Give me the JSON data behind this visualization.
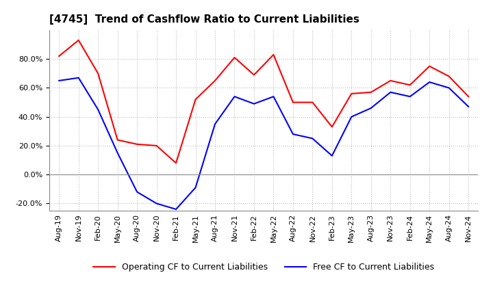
{
  "title": "[4745]  Trend of Cashflow Ratio to Current Liabilities",
  "x_labels": [
    "Aug-19",
    "Nov-19",
    "Feb-20",
    "May-20",
    "Aug-20",
    "Nov-20",
    "Feb-21",
    "May-21",
    "Aug-21",
    "Nov-21",
    "Feb-22",
    "May-22",
    "Aug-22",
    "Nov-22",
    "Feb-23",
    "May-23",
    "Aug-23",
    "Nov-23",
    "Feb-24",
    "May-24",
    "Aug-24",
    "Nov-24"
  ],
  "operating_cf": [
    0.82,
    0.93,
    0.7,
    0.24,
    0.21,
    0.2,
    0.08,
    0.52,
    0.65,
    0.81,
    0.69,
    0.83,
    0.5,
    0.5,
    0.33,
    0.56,
    0.57,
    0.65,
    0.62,
    0.75,
    0.68,
    0.54
  ],
  "free_cf": [
    0.65,
    0.67,
    0.45,
    0.15,
    -0.12,
    -0.2,
    -0.24,
    -0.09,
    0.35,
    0.54,
    0.49,
    0.54,
    0.28,
    0.25,
    0.13,
    0.4,
    0.46,
    0.57,
    0.54,
    0.64,
    0.6,
    0.47
  ],
  "operating_color": "#ff0000",
  "free_color": "#0000ff",
  "ylim": [
    -0.25,
    1.0
  ],
  "yticks": [
    -0.2,
    0.0,
    0.2,
    0.4,
    0.6,
    0.8
  ],
  "background_color": "#ffffff",
  "grid_color": "#aaaaaa",
  "legend_operating": "Operating CF to Current Liabilities",
  "legend_free": "Free CF to Current Liabilities",
  "title_fontsize": 11,
  "tick_fontsize": 8,
  "legend_fontsize": 9
}
